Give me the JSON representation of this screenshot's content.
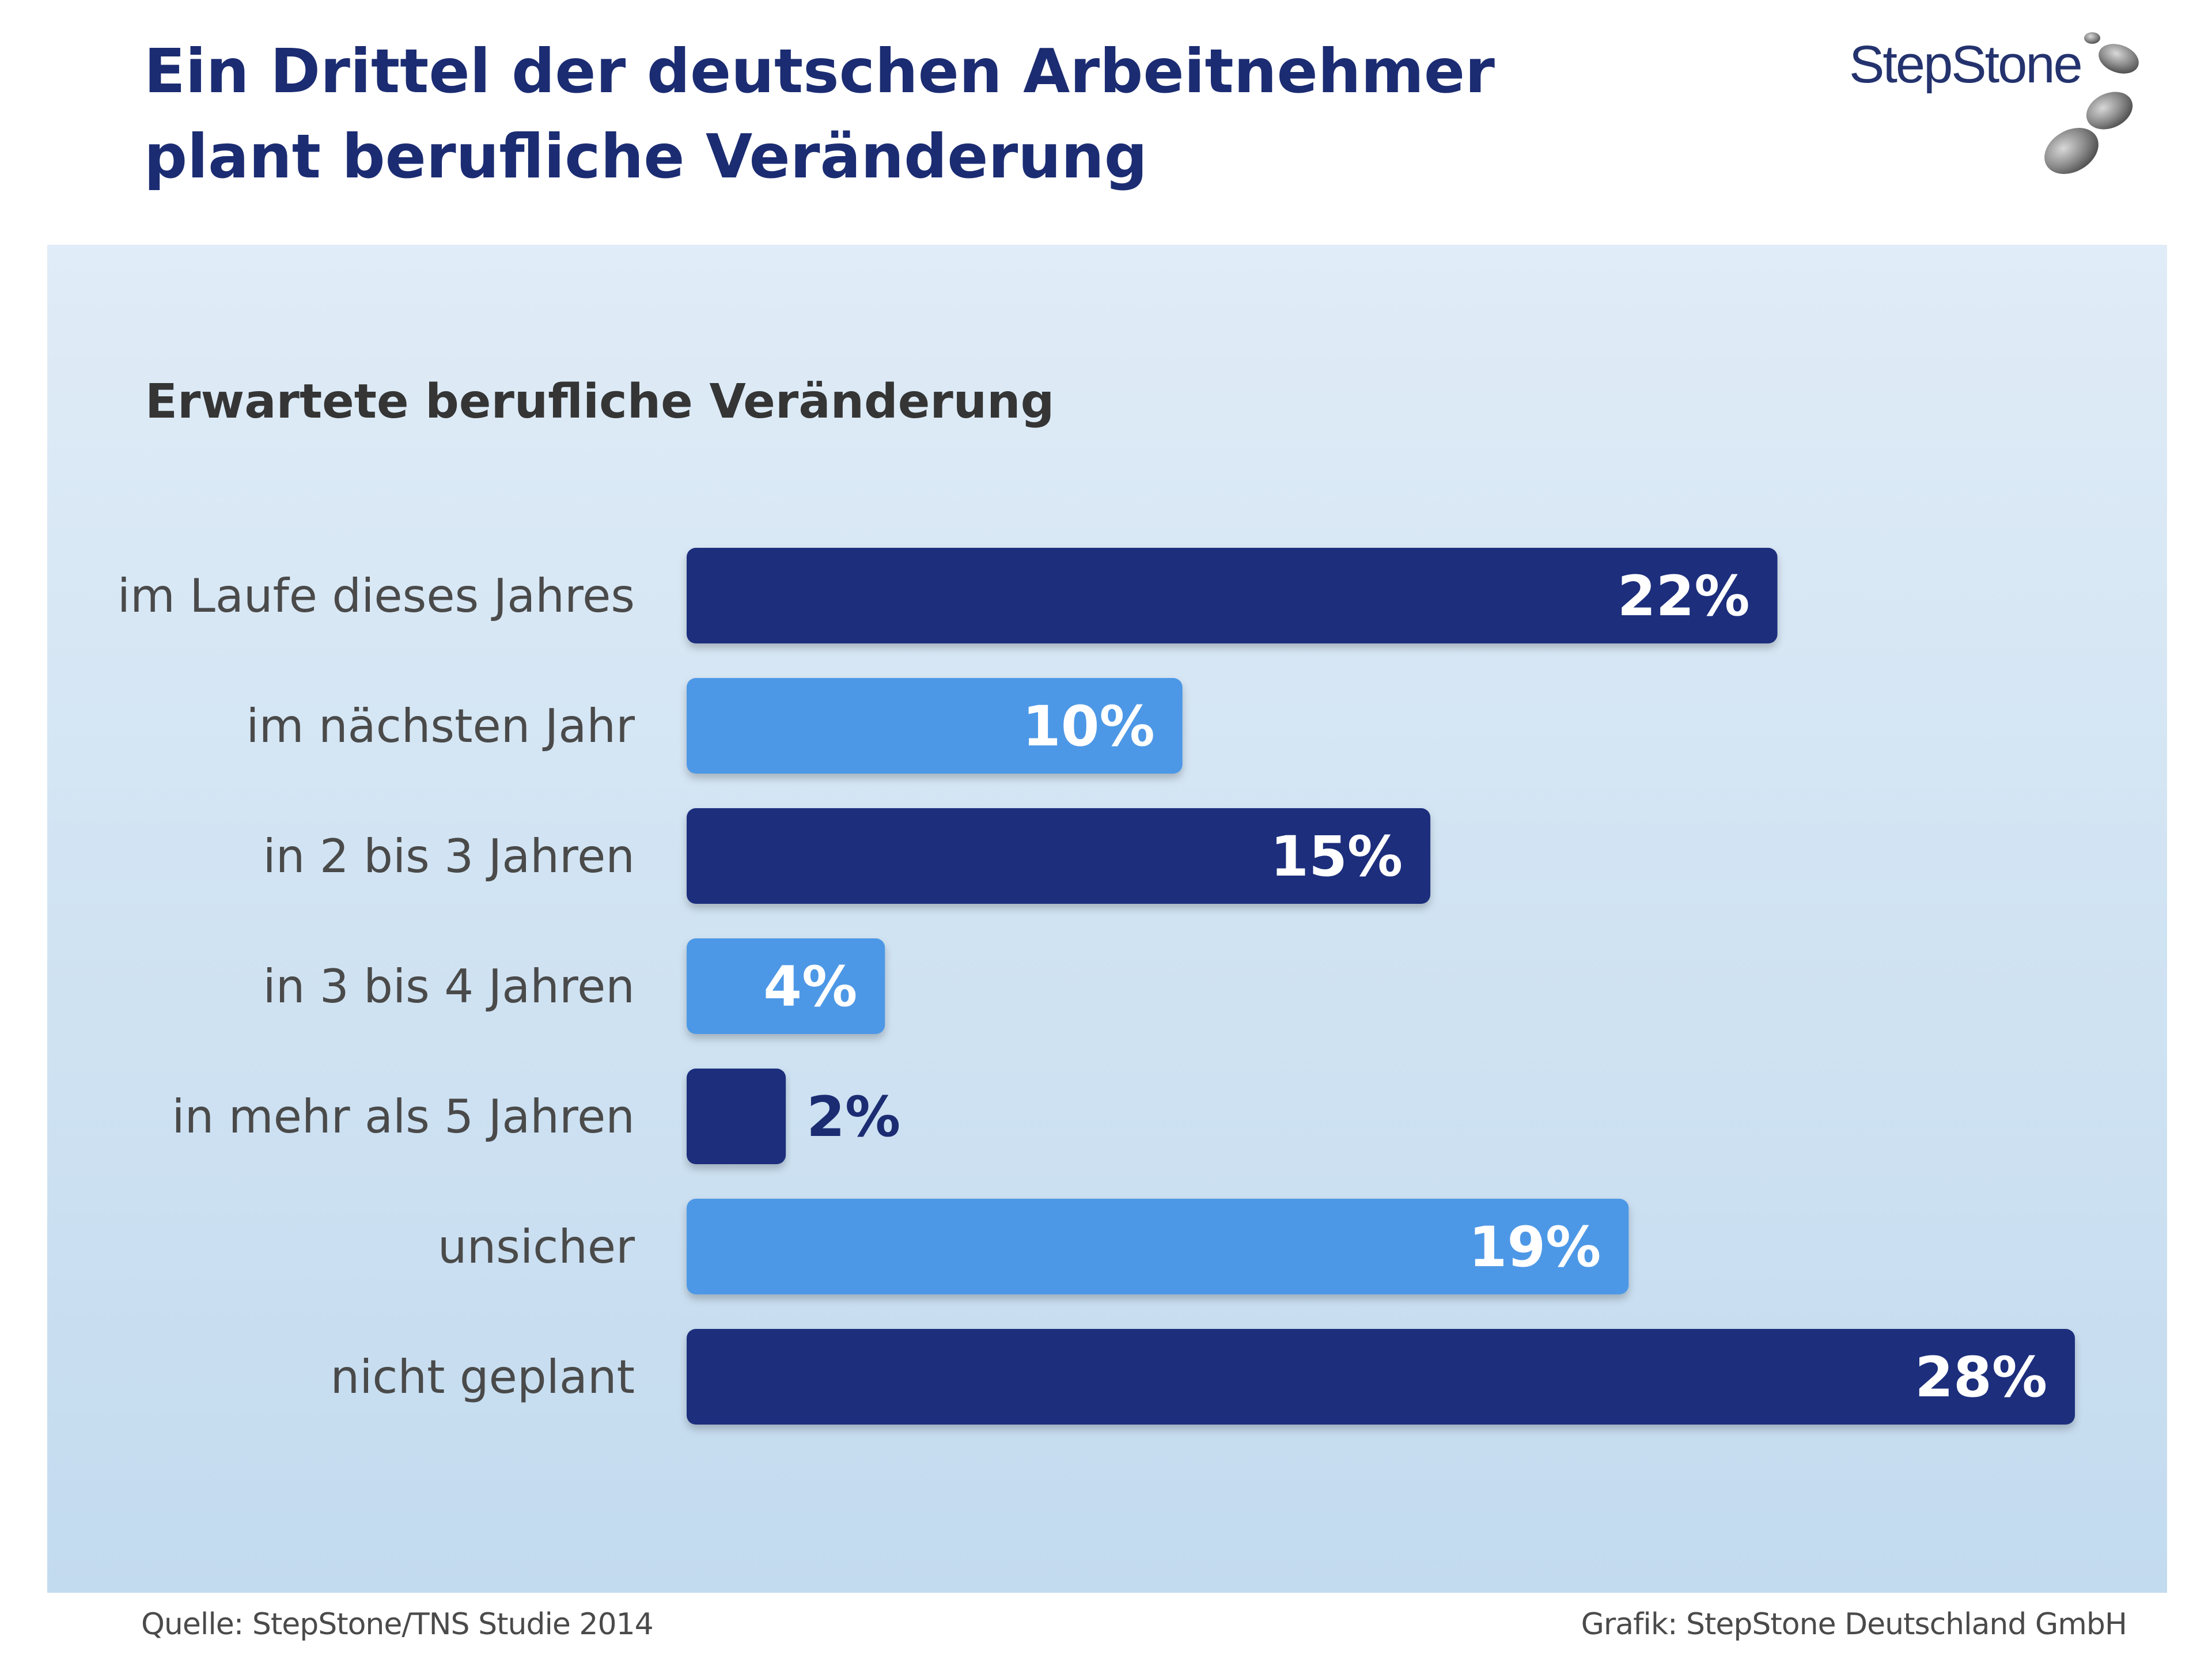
{
  "header": {
    "title_line1": "Ein Drittel der deutschen Arbeitnehmer",
    "title_line2": "plant berufliche Veränderung",
    "logo_text": "StepStone"
  },
  "footer": {
    "source": "Quelle: StepStone/TNS Studie 2014",
    "credit": "Grafik: StepStone Deutschland GmbH"
  },
  "colors": {
    "dark_bar": "#1c2f7c",
    "light_bar": "#4e98e6",
    "label_text": "#4a4a4a",
    "outside_value_text": "#1b2c72",
    "inside_value_text": "#ffffff"
  },
  "chart_data": {
    "type": "bar",
    "orientation": "horizontal",
    "title": "Erwartete berufliche Veränderung",
    "categories": [
      "im Laufe dieses Jahres",
      "im nächsten Jahr",
      "in 2 bis 3 Jahren",
      "in 3 bis 4 Jahren",
      "in mehr als 5 Jahren",
      "unsicher",
      "nicht geplant"
    ],
    "values": [
      22,
      10,
      15,
      4,
      2,
      19,
      28
    ],
    "value_labels": [
      "22%",
      "10%",
      "15%",
      "4%",
      "2%",
      "19%",
      "28%"
    ],
    "bar_colors": [
      "dark",
      "light",
      "dark",
      "light",
      "dark",
      "light",
      "dark"
    ],
    "xlim": [
      0,
      28
    ],
    "unit": "%",
    "grid": false,
    "legend": "none"
  }
}
